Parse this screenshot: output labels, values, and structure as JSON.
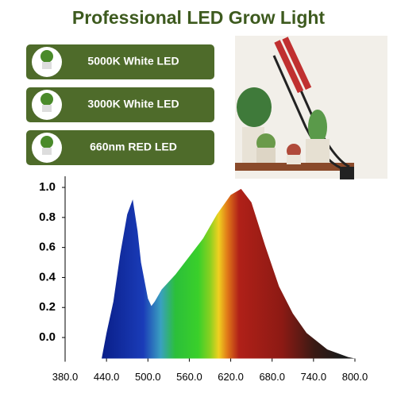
{
  "header": {
    "title": "Professional LED Grow Light"
  },
  "features": [
    {
      "label": "5000K White LED"
    },
    {
      "label": "3000K White LED"
    },
    {
      "label": "660nm RED LED"
    }
  ],
  "chart_data": {
    "type": "area",
    "x": [
      433,
      440,
      450,
      460,
      470,
      478,
      485,
      490,
      500,
      505,
      510,
      520,
      540,
      560,
      580,
      600,
      620,
      635,
      650,
      670,
      690,
      710,
      730,
      760,
      790,
      800
    ],
    "values": [
      -0.14,
      0.03,
      0.24,
      0.56,
      0.82,
      0.92,
      0.71,
      0.5,
      0.26,
      0.21,
      0.24,
      0.32,
      0.42,
      0.54,
      0.66,
      0.82,
      0.95,
      0.99,
      0.9,
      0.61,
      0.34,
      0.16,
      0.03,
      -0.08,
      -0.13,
      -0.14
    ],
    "xlim": [
      380,
      800
    ],
    "ylim": [
      -0.14,
      1.07
    ],
    "xticks": [
      {
        "value": 380,
        "label": "380.0"
      },
      {
        "value": 440,
        "label": "440.0"
      },
      {
        "value": 500,
        "label": "500.0"
      },
      {
        "value": 560,
        "label": "560.0"
      },
      {
        "value": 620,
        "label": "620.0"
      },
      {
        "value": 680,
        "label": "680.0"
      },
      {
        "value": 740,
        "label": "740.0"
      },
      {
        "value": 800,
        "label": "800.0"
      }
    ],
    "yticks": [
      {
        "value": 0,
        "label": "0.0"
      },
      0.2,
      0.4,
      0.6,
      0.8,
      {
        "value": 1,
        "label": "1.0"
      }
    ]
  }
}
